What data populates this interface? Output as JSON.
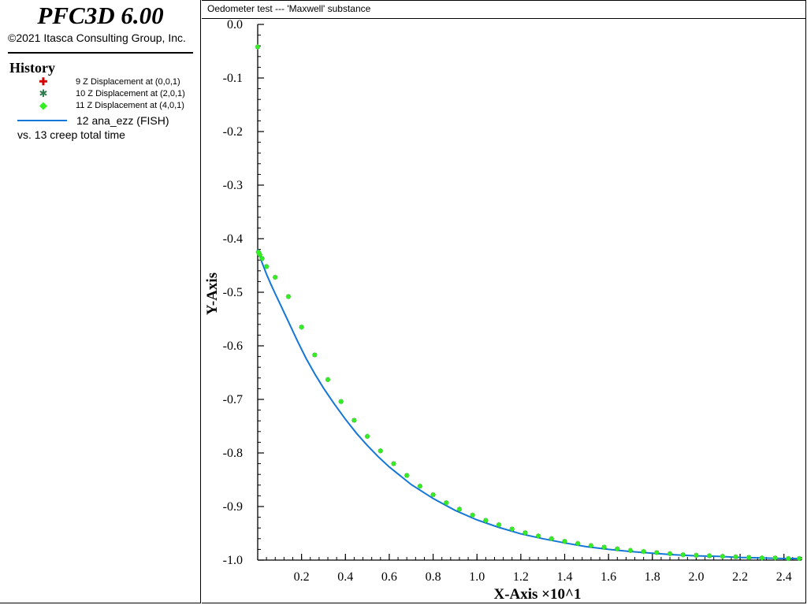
{
  "app": {
    "title": "PFC3D 6.00",
    "copyright": "©2021 Itasca Consulting Group, Inc."
  },
  "legend": {
    "heading": "History",
    "items": [
      {
        "label": "9 Z Displacement at (0,0,1)",
        "color": "#d40000",
        "icon": "plus-marker-icon"
      },
      {
        "label": "10 Z Displacement at (2,0,1)",
        "color": "#2f7a50",
        "icon": "star-marker-icon"
      },
      {
        "label": "11 Z Displacement at (4,0,1)",
        "color": "#33ee22",
        "icon": "diamond-marker-icon"
      },
      {
        "label": "12 ana_ezz (FISH)",
        "color": "#1477d8",
        "icon": "line-marker-icon"
      }
    ],
    "vs_label": "vs. 13 creep total time"
  },
  "chart_data": {
    "type": "scatter",
    "title": "Oedometer test --- 'Maxwell' substance",
    "xlabel": "X-Axis ×10^1",
    "ylabel": "Y-Axis",
    "xlim": [
      0,
      2.48
    ],
    "ylim": [
      -1.0,
      0.0
    ],
    "x_ticks": [
      0.2,
      0.4,
      0.6,
      0.8,
      1.0,
      1.2,
      1.4,
      1.6,
      1.8,
      2.0,
      2.2,
      2.4
    ],
    "x_tick_labels": [
      "0.2",
      "0.4",
      "0.6",
      "0.8",
      "1.0",
      "1.2",
      "1.4",
      "1.6",
      "1.8",
      "2.0",
      "2.2",
      "2.4"
    ],
    "y_ticks": [
      0.0,
      -0.1,
      -0.2,
      -0.3,
      -0.4,
      -0.5,
      -0.6,
      -0.7,
      -0.8,
      -0.9,
      -1.0
    ],
    "y_tick_labels": [
      "0.0",
      "-0.1",
      "-0.2",
      "-0.3",
      "-0.4",
      "-0.5",
      "-0.6",
      "-0.7",
      "-0.8",
      "-0.9",
      "-1.0"
    ],
    "grid": false,
    "series": [
      {
        "name": "9 Z Displacement at (0,0,1)",
        "color": "#d40000",
        "marker": "plus",
        "x": [
          0.0,
          0.003,
          0.006,
          0.01,
          0.02,
          0.04,
          0.08,
          0.14,
          0.2,
          0.26,
          0.32,
          0.38,
          0.44,
          0.5,
          0.56,
          0.62,
          0.68,
          0.74,
          0.8,
          0.86,
          0.92,
          0.98,
          1.04,
          1.1,
          1.16,
          1.22,
          1.28,
          1.34,
          1.4,
          1.46,
          1.52,
          1.58,
          1.64,
          1.7,
          1.76,
          1.82,
          1.88,
          1.94,
          2.0,
          2.06,
          2.12,
          2.18,
          2.24,
          2.3,
          2.36,
          2.42,
          2.47
        ],
        "y": [
          -0.042,
          -0.425,
          -0.427,
          -0.43,
          -0.437,
          -0.452,
          -0.472,
          -0.508,
          -0.565,
          -0.617,
          -0.663,
          -0.704,
          -0.739,
          -0.769,
          -0.796,
          -0.82,
          -0.842,
          -0.862,
          -0.878,
          -0.893,
          -0.905,
          -0.916,
          -0.926,
          -0.934,
          -0.942,
          -0.949,
          -0.955,
          -0.96,
          -0.965,
          -0.969,
          -0.973,
          -0.976,
          -0.979,
          -0.982,
          -0.984,
          -0.986,
          -0.988,
          -0.99,
          -0.991,
          -0.992,
          -0.993,
          -0.994,
          -0.995,
          -0.996,
          -0.996,
          -0.997,
          -0.997
        ]
      },
      {
        "name": "10 Z Displacement at (2,0,1)",
        "color": "#2f7a50",
        "marker": "star",
        "x": [
          0.0,
          0.003,
          0.006,
          0.01,
          0.02,
          0.04,
          0.08,
          0.14,
          0.2,
          0.26,
          0.32,
          0.38,
          0.44,
          0.5,
          0.56,
          0.62,
          0.68,
          0.74,
          0.8,
          0.86,
          0.92,
          0.98,
          1.04,
          1.1,
          1.16,
          1.22,
          1.28,
          1.34,
          1.4,
          1.46,
          1.52,
          1.58,
          1.64,
          1.7,
          1.76,
          1.82,
          1.88,
          1.94,
          2.0,
          2.06,
          2.12,
          2.18,
          2.24,
          2.3,
          2.36,
          2.42,
          2.47
        ],
        "y": [
          -0.042,
          -0.425,
          -0.427,
          -0.43,
          -0.437,
          -0.452,
          -0.472,
          -0.508,
          -0.565,
          -0.617,
          -0.663,
          -0.704,
          -0.739,
          -0.769,
          -0.796,
          -0.82,
          -0.842,
          -0.862,
          -0.878,
          -0.893,
          -0.905,
          -0.916,
          -0.926,
          -0.934,
          -0.942,
          -0.949,
          -0.955,
          -0.96,
          -0.965,
          -0.969,
          -0.973,
          -0.976,
          -0.979,
          -0.982,
          -0.984,
          -0.986,
          -0.988,
          -0.99,
          -0.991,
          -0.992,
          -0.993,
          -0.994,
          -0.995,
          -0.996,
          -0.996,
          -0.997,
          -0.997
        ]
      },
      {
        "name": "11 Z Displacement at (4,0,1)",
        "color": "#33ee22",
        "marker": "diamond",
        "x": [
          0.0,
          0.003,
          0.006,
          0.01,
          0.02,
          0.04,
          0.08,
          0.14,
          0.2,
          0.26,
          0.32,
          0.38,
          0.44,
          0.5,
          0.56,
          0.62,
          0.68,
          0.74,
          0.8,
          0.86,
          0.92,
          0.98,
          1.04,
          1.1,
          1.16,
          1.22,
          1.28,
          1.34,
          1.4,
          1.46,
          1.52,
          1.58,
          1.64,
          1.7,
          1.76,
          1.82,
          1.88,
          1.94,
          2.0,
          2.06,
          2.12,
          2.18,
          2.24,
          2.3,
          2.36,
          2.42,
          2.47
        ],
        "y": [
          -0.042,
          -0.425,
          -0.427,
          -0.43,
          -0.437,
          -0.452,
          -0.472,
          -0.508,
          -0.565,
          -0.617,
          -0.663,
          -0.704,
          -0.739,
          -0.769,
          -0.796,
          -0.82,
          -0.842,
          -0.862,
          -0.878,
          -0.893,
          -0.905,
          -0.916,
          -0.926,
          -0.934,
          -0.942,
          -0.949,
          -0.955,
          -0.96,
          -0.965,
          -0.969,
          -0.973,
          -0.976,
          -0.979,
          -0.982,
          -0.984,
          -0.986,
          -0.988,
          -0.99,
          -0.991,
          -0.992,
          -0.993,
          -0.994,
          -0.995,
          -0.996,
          -0.996,
          -0.997,
          -0.997
        ]
      },
      {
        "name": "12 ana_ezz (FISH)",
        "color": "#1477d8",
        "marker": "line",
        "x": [
          0.0,
          0.01,
          0.02,
          0.04,
          0.06,
          0.08,
          0.1,
          0.14,
          0.18,
          0.22,
          0.26,
          0.3,
          0.35,
          0.4,
          0.45,
          0.5,
          0.55,
          0.6,
          0.7,
          0.8,
          0.9,
          1.0,
          1.1,
          1.2,
          1.3,
          1.4,
          1.5,
          1.6,
          1.7,
          1.8,
          1.9,
          2.0,
          2.1,
          2.2,
          2.3,
          2.4,
          2.47
        ],
        "y": [
          -0.42,
          -0.433,
          -0.445,
          -0.466,
          -0.485,
          -0.503,
          -0.52,
          -0.555,
          -0.59,
          -0.623,
          -0.652,
          -0.679,
          -0.709,
          -0.737,
          -0.763,
          -0.786,
          -0.807,
          -0.826,
          -0.859,
          -0.885,
          -0.907,
          -0.925,
          -0.939,
          -0.951,
          -0.96,
          -0.968,
          -0.975,
          -0.98,
          -0.984,
          -0.987,
          -0.99,
          -0.992,
          -0.993,
          -0.995,
          -0.996,
          -0.997,
          -0.997
        ]
      }
    ]
  }
}
